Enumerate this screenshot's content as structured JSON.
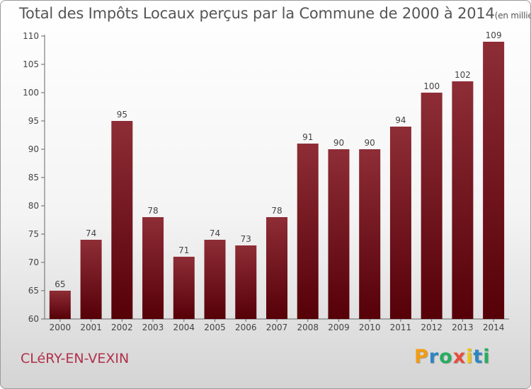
{
  "title": "Total des Impôts Locaux perçus par la Commune de 2000 à 2014",
  "unit_note": "(en milliers d'€)",
  "commune": "CLéRY-EN-VEXIN",
  "brand": {
    "letters": [
      "P",
      "r",
      "o",
      "x",
      "i",
      "t",
      "i"
    ],
    "colors": [
      "#f39c12",
      "#2e86c1",
      "#27ae60",
      "#e74c3c",
      "#f1c40f",
      "#2e86c1",
      "#27ae60"
    ]
  },
  "chart_data": {
    "type": "bar",
    "title": "Total des Impôts Locaux perçus par la Commune de 2000 à 2014",
    "xlabel": "",
    "ylabel": "(en milliers d'€)",
    "categories": [
      "2000",
      "2001",
      "2002",
      "2003",
      "2004",
      "2005",
      "2006",
      "2007",
      "2008",
      "2009",
      "2010",
      "2011",
      "2012",
      "2013",
      "2014"
    ],
    "values": [
      65,
      74,
      95,
      78,
      71,
      74,
      73,
      78,
      91,
      90,
      90,
      94,
      100,
      102,
      109
    ],
    "ylim": [
      60,
      110
    ],
    "yticks": [
      60,
      65,
      70,
      75,
      80,
      85,
      90,
      95,
      100,
      105,
      110
    ],
    "grid": false,
    "bar_color": "#7a1a24"
  }
}
